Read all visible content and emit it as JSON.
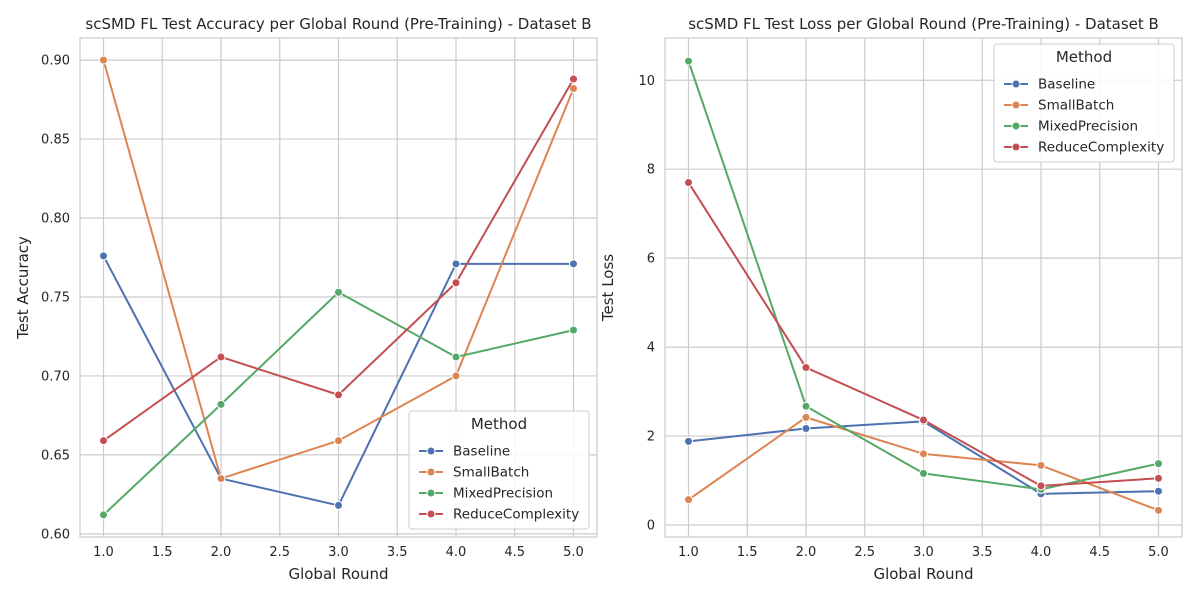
{
  "chart_data": [
    {
      "type": "line",
      "title": "scSMD FL Test Accuracy per Global Round (Pre-Training) - Dataset B",
      "xlabel": "Global Round",
      "ylabel": "Test Accuracy",
      "x": [
        1.0,
        2.0,
        3.0,
        4.0,
        5.0
      ],
      "xticks": [
        "1.0",
        "1.5",
        "2.0",
        "2.5",
        "3.0",
        "3.5",
        "4.0",
        "4.5",
        "5.0"
      ],
      "yticks": [
        "0.60",
        "0.65",
        "0.70",
        "0.75",
        "0.80",
        "0.85",
        "0.90"
      ],
      "xlim": [
        0.8,
        5.2
      ],
      "ylim": [
        0.598,
        0.914
      ],
      "grid": true,
      "legend": {
        "title": "Method",
        "placement": "lower-right"
      },
      "series": [
        {
          "name": "Baseline",
          "color": "#4c72b0",
          "values": [
            0.776,
            0.635,
            0.618,
            0.771,
            0.771
          ]
        },
        {
          "name": "SmallBatch",
          "color": "#dd8452",
          "values": [
            0.9,
            0.635,
            0.659,
            0.7,
            0.882
          ]
        },
        {
          "name": "MixedPrecision",
          "color": "#55a868",
          "values": [
            0.612,
            0.682,
            0.753,
            0.712,
            0.729
          ]
        },
        {
          "name": "ReduceComplexity",
          "color": "#c44e52",
          "values": [
            0.659,
            0.712,
            0.688,
            0.759,
            0.888
          ]
        }
      ]
    },
    {
      "type": "line",
      "title": "scSMD FL Test Loss per Global Round (Pre-Training) - Dataset B",
      "xlabel": "Global Round",
      "ylabel": "Test Loss",
      "x": [
        1.0,
        2.0,
        3.0,
        4.0,
        5.0
      ],
      "xticks": [
        "1.0",
        "1.5",
        "2.0",
        "2.5",
        "3.0",
        "3.5",
        "4.0",
        "4.5",
        "5.0"
      ],
      "yticks": [
        "0",
        "2",
        "4",
        "6",
        "8",
        "10"
      ],
      "xlim": [
        0.8,
        5.2
      ],
      "ylim": [
        -0.27,
        10.95
      ],
      "grid": true,
      "legend": {
        "title": "Method",
        "placement": "upper-right"
      },
      "series": [
        {
          "name": "Baseline",
          "color": "#4c72b0",
          "values": [
            1.88,
            2.17,
            2.33,
            0.7,
            0.76
          ]
        },
        {
          "name": "SmallBatch",
          "color": "#dd8452",
          "values": [
            0.57,
            2.42,
            1.6,
            1.34,
            0.33
          ]
        },
        {
          "name": "MixedPrecision",
          "color": "#55a868",
          "values": [
            10.43,
            2.67,
            1.16,
            0.8,
            1.38
          ]
        },
        {
          "name": "ReduceComplexity",
          "color": "#c44e52",
          "values": [
            7.7,
            3.54,
            2.36,
            0.88,
            1.05
          ]
        }
      ]
    }
  ]
}
